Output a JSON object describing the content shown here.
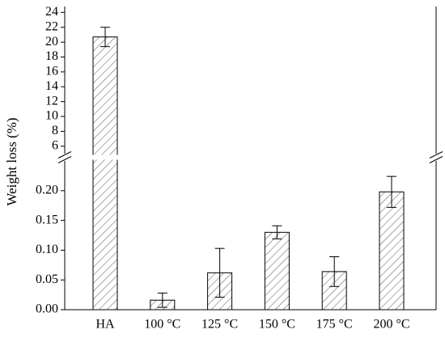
{
  "chart_data": {
    "type": "bar",
    "y_label": "Weight loss (%)",
    "categories": [
      "HA",
      "100 °C",
      "125 °C",
      "150 °C",
      "175 °C",
      "200 °C"
    ],
    "values": [
      20.7,
      0.016,
      0.062,
      0.13,
      0.064,
      0.198
    ],
    "errors": [
      1.3,
      0.012,
      0.041,
      0.011,
      0.025,
      0.026
    ],
    "color": "#555555",
    "y_segments": [
      {
        "ylim": [
          0,
          0.25
        ],
        "yticks": [
          {
            "value": 0,
            "label": "0.00"
          },
          0.05,
          {
            "value": 0.1,
            "label": "0.10"
          },
          0.15,
          {
            "value": 0.2,
            "label": "0.20"
          }
        ]
      },
      {
        "ylim": [
          5,
          24.8
        ],
        "yticks": [
          6,
          8,
          10,
          12,
          14,
          16,
          18,
          20,
          22,
          24
        ]
      }
    ]
  }
}
